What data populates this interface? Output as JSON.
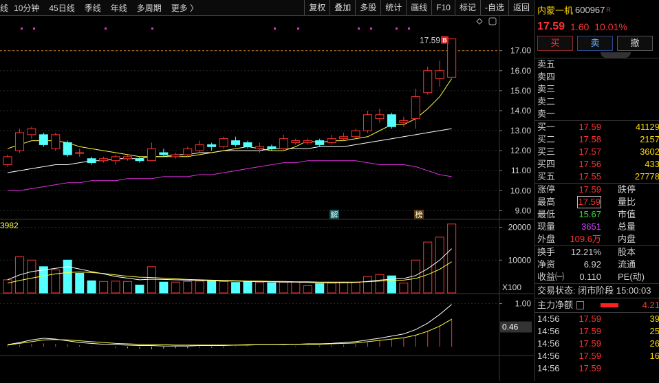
{
  "toolbar": {
    "left_items": [
      "线",
      "10分钟",
      "45日线",
      "季线",
      "年线",
      "多周期",
      "更多 〉"
    ],
    "right_items": [
      "复权",
      "叠加",
      "多股",
      "统计",
      "画线",
      "F10",
      "标记",
      "-自选",
      "返回"
    ]
  },
  "colors": {
    "up": "#ff3232",
    "down": "#54ffff",
    "ma_white": "#ffffff",
    "ma_yellow": "#ffff40",
    "ma_magenta": "#e030e0",
    "grid": "#2a2a2a",
    "bg": "#000000"
  },
  "chart_data": [
    {
      "type": "candlestick",
      "title": "",
      "y_ticks": [
        "17.00",
        "16.00",
        "15.00",
        "14.00",
        "13.00",
        "12.00",
        "11.00",
        "10.00",
        "9.00"
      ],
      "ylim": [
        8.6,
        18.4
      ],
      "ref_line": 17.0,
      "last_price_label": "17.59",
      "markers": [
        "解",
        "榜"
      ],
      "candles": [
        {
          "o": 11.3,
          "c": 11.7,
          "h": 11.8,
          "l": 11.2
        },
        {
          "o": 12.0,
          "c": 12.9,
          "h": 13.1,
          "l": 11.9
        },
        {
          "o": 12.8,
          "c": 13.1,
          "h": 13.2,
          "l": 12.6
        },
        {
          "o": 12.8,
          "c": 12.3,
          "h": 12.9,
          "l": 12.2
        },
        {
          "o": 12.1,
          "c": 12.8,
          "h": 12.9,
          "l": 12.0
        },
        {
          "o": 12.4,
          "c": 11.8,
          "h": 12.5,
          "l": 11.7
        },
        {
          "o": 11.9,
          "c": 11.9,
          "h": 12.1,
          "l": 11.7
        },
        {
          "o": 11.6,
          "c": 11.4,
          "h": 11.7,
          "l": 11.3
        },
        {
          "o": 11.5,
          "c": 11.6,
          "h": 11.7,
          "l": 11.4
        },
        {
          "o": 11.5,
          "c": 11.7,
          "h": 11.8,
          "l": 11.3
        },
        {
          "o": 11.6,
          "c": 11.7,
          "h": 11.8,
          "l": 11.5
        },
        {
          "o": 11.6,
          "c": 11.5,
          "h": 11.7,
          "l": 11.4
        },
        {
          "o": 11.5,
          "c": 12.1,
          "h": 12.4,
          "l": 11.5
        },
        {
          "o": 11.9,
          "c": 11.8,
          "h": 12.1,
          "l": 11.7
        },
        {
          "o": 11.7,
          "c": 11.8,
          "h": 11.9,
          "l": 11.6
        },
        {
          "o": 11.8,
          "c": 12.1,
          "h": 12.2,
          "l": 11.7
        },
        {
          "o": 12.0,
          "c": 12.3,
          "h": 12.5,
          "l": 11.9
        },
        {
          "o": 12.3,
          "c": 12.2,
          "h": 12.4,
          "l": 12.0
        },
        {
          "o": 12.2,
          "c": 12.6,
          "h": 12.7,
          "l": 12.1
        },
        {
          "o": 12.5,
          "c": 12.3,
          "h": 12.7,
          "l": 12.2
        },
        {
          "o": 12.4,
          "c": 12.2,
          "h": 12.5,
          "l": 12.1
        },
        {
          "o": 12.1,
          "c": 12.2,
          "h": 12.4,
          "l": 11.9
        },
        {
          "o": 12.2,
          "c": 12.1,
          "h": 12.3,
          "l": 12.0
        },
        {
          "o": 12.1,
          "c": 12.6,
          "h": 12.8,
          "l": 12.0
        },
        {
          "o": 12.4,
          "c": 12.5,
          "h": 12.6,
          "l": 12.3
        },
        {
          "o": 12.4,
          "c": 12.5,
          "h": 12.6,
          "l": 12.3
        },
        {
          "o": 12.5,
          "c": 12.3,
          "h": 12.6,
          "l": 12.2
        },
        {
          "o": 12.4,
          "c": 12.6,
          "h": 12.8,
          "l": 12.3
        },
        {
          "o": 12.6,
          "c": 12.7,
          "h": 12.9,
          "l": 12.5
        },
        {
          "o": 12.7,
          "c": 13.0,
          "h": 13.1,
          "l": 12.6
        },
        {
          "o": 13.0,
          "c": 13.8,
          "h": 14.0,
          "l": 12.9
        },
        {
          "o": 13.6,
          "c": 13.8,
          "h": 14.1,
          "l": 13.4
        },
        {
          "o": 13.8,
          "c": 13.2,
          "h": 13.9,
          "l": 13.1
        },
        {
          "o": 13.4,
          "c": 13.5,
          "h": 13.7,
          "l": 13.2
        },
        {
          "o": 13.6,
          "c": 14.7,
          "h": 15.1,
          "l": 13.1
        },
        {
          "o": 14.9,
          "c": 16.0,
          "h": 16.2,
          "l": 14.8
        },
        {
          "o": 15.6,
          "c": 16.0,
          "h": 16.5,
          "l": 15.2
        },
        {
          "o": 15.67,
          "c": 17.59,
          "h": 17.59,
          "l": 15.67
        }
      ],
      "ma_white": [
        10.9,
        11.0,
        11.1,
        11.2,
        11.3,
        11.3,
        11.4,
        11.5,
        11.5,
        11.6,
        11.6,
        11.6,
        11.7,
        11.7,
        11.8,
        11.8,
        11.9,
        11.9,
        12.0,
        12.0,
        12.0,
        12.0,
        12.1,
        12.1,
        12.1,
        12.1,
        12.2,
        12.2,
        12.2,
        12.3,
        12.4,
        12.5,
        12.6,
        12.7,
        12.8,
        12.9,
        13.0,
        13.1
      ],
      "ma_yellow": [
        12.1,
        12.3,
        12.5,
        12.5,
        12.5,
        12.4,
        12.2,
        12.1,
        12.0,
        11.9,
        11.8,
        11.7,
        11.7,
        11.7,
        11.7,
        11.7,
        11.8,
        11.9,
        12.0,
        12.1,
        12.2,
        12.1,
        12.0,
        12.0,
        12.2,
        12.5,
        12.4,
        12.5,
        12.5,
        12.6,
        12.7,
        13.0,
        13.3,
        13.3,
        13.6,
        14.1,
        14.7,
        15.6
      ],
      "ma_magenta": [
        10.0,
        10.0,
        10.1,
        10.2,
        10.3,
        10.4,
        10.4,
        10.5,
        10.5,
        10.5,
        10.6,
        10.6,
        10.6,
        10.7,
        10.7,
        10.7,
        10.8,
        10.8,
        10.9,
        11.0,
        11.1,
        11.2,
        11.3,
        11.4,
        11.4,
        11.5,
        11.5,
        11.5,
        11.5,
        11.5,
        11.4,
        11.3,
        11.3,
        11.3,
        11.2,
        11.0,
        10.8,
        10.7
      ]
    },
    {
      "type": "bar",
      "label": "3982",
      "y_ticks": [
        "20000",
        "10000"
      ],
      "unit": "X100",
      "ylim": [
        0,
        22000
      ],
      "values": [
        4000,
        11000,
        10000,
        8000,
        7000,
        10000,
        6000,
        3700,
        3500,
        3600,
        3500,
        2400,
        8000,
        3300,
        3300,
        3500,
        3600,
        3700,
        3500,
        3200,
        3400,
        3300,
        3100,
        3300,
        3300,
        2200,
        2800,
        3000,
        3200,
        3200,
        5000,
        5600,
        5200,
        3000,
        10000,
        15500,
        17000,
        21000
      ],
      "up_flags": [
        1,
        1,
        1,
        0,
        1,
        0,
        0,
        0,
        1,
        1,
        1,
        0,
        1,
        0,
        1,
        1,
        1,
        0,
        1,
        0,
        0,
        1,
        0,
        1,
        1,
        1,
        0,
        1,
        1,
        1,
        1,
        1,
        0,
        1,
        1,
        1,
        1,
        1
      ],
      "ma1": [
        4000,
        5500,
        6500,
        7000,
        7500,
        8000,
        7300,
        6500,
        5800,
        5000,
        4500,
        4000,
        4200,
        4100,
        4000,
        3900,
        3800,
        3700,
        3600,
        3600,
        3500,
        3400,
        3400,
        3300,
        3300,
        3200,
        3100,
        3100,
        3100,
        3200,
        3500,
        3900,
        4200,
        4400,
        5300,
        7400,
        10000,
        13500
      ],
      "ma2": [
        3000,
        3800,
        4500,
        5200,
        5800,
        6200,
        6400,
        6200,
        5900,
        5500,
        5100,
        4800,
        4700,
        4500,
        4300,
        4100,
        4000,
        3900,
        3800,
        3700,
        3600,
        3600,
        3500,
        3500,
        3400,
        3400,
        3300,
        3300,
        3300,
        3300,
        3400,
        3600,
        3800,
        3900,
        4400,
        5600,
        7200,
        9500
      ]
    },
    {
      "type": "bar",
      "y_ticks": [
        "1.00"
      ],
      "cursor_label": "0.46",
      "ylim": [
        -0.2,
        1.2
      ],
      "values": [
        0.03,
        0.05,
        0.07,
        0.08,
        0.07,
        0.06,
        0.04,
        0.02,
        0.0,
        -0.02,
        -0.03,
        -0.04,
        -0.05,
        -0.04,
        -0.03,
        -0.03,
        -0.02,
        -0.02,
        -0.02,
        -0.01,
        -0.01,
        0.0,
        0.0,
        0.01,
        0.02,
        0.02,
        0.03,
        0.04,
        0.05,
        0.06,
        0.1,
        0.14,
        0.18,
        0.2,
        0.28,
        0.38,
        0.5,
        0.65
      ],
      "line1": [
        0.05,
        0.1,
        0.16,
        0.2,
        0.18,
        0.14,
        0.1,
        0.08,
        0.06,
        0.05,
        0.04,
        0.03,
        0.03,
        0.02,
        0.02,
        0.02,
        0.03,
        0.03,
        0.03,
        0.04,
        0.04,
        0.05,
        0.05,
        0.06,
        0.06,
        0.07,
        0.07,
        0.08,
        0.1,
        0.12,
        0.16,
        0.2,
        0.25,
        0.3,
        0.4,
        0.55,
        0.75,
        0.98
      ],
      "line2": [
        0.04,
        0.08,
        0.12,
        0.16,
        0.17,
        0.16,
        0.14,
        0.12,
        0.1,
        0.08,
        0.07,
        0.06,
        0.05,
        0.05,
        0.04,
        0.04,
        0.04,
        0.04,
        0.04,
        0.04,
        0.05,
        0.05,
        0.05,
        0.05,
        0.06,
        0.06,
        0.06,
        0.07,
        0.08,
        0.09,
        0.12,
        0.15,
        0.18,
        0.21,
        0.27,
        0.36,
        0.48,
        0.64
      ]
    }
  ],
  "stock": {
    "name": "内蒙一机",
    "code": "600967",
    "badge": "R",
    "price": "17.59",
    "change": "1.60",
    "pct": "10.01%",
    "btn_buy": "买",
    "btn_sell": "卖",
    "btn_cancel": "撤"
  },
  "asks": [
    {
      "label": "卖五"
    },
    {
      "label": "卖四"
    },
    {
      "label": "卖三"
    },
    {
      "label": "卖二"
    },
    {
      "label": "卖一"
    }
  ],
  "bids": [
    {
      "label": "买一",
      "price": "17.59",
      "vol": "41129"
    },
    {
      "label": "买二",
      "price": "17.58",
      "vol": "2157"
    },
    {
      "label": "买三",
      "price": "17.57",
      "vol": "3602"
    },
    {
      "label": "买四",
      "price": "17.56",
      "vol": "433"
    },
    {
      "label": "买五",
      "price": "17.55",
      "vol": "27778"
    }
  ],
  "quote": [
    {
      "k1": "涨停",
      "v1": "17.59",
      "k2": "跌停"
    },
    {
      "k1": "最高",
      "v1": "17.59",
      "k2": "量比"
    },
    {
      "k1": "最低",
      "v1": "15.67",
      "k2": "市值"
    },
    {
      "k1": "现量",
      "v1": "3651",
      "k2": "总量"
    },
    {
      "k1": "外盘",
      "v1": "109.6万",
      "k2": "内盘"
    }
  ],
  "stats": [
    {
      "k1": "换手",
      "v1": "12.21%",
      "k2": "股本"
    },
    {
      "k1": "净资",
      "v1": "6.92",
      "k2": "流通"
    },
    {
      "k1": "收益㈠",
      "v1": "0.110",
      "k2": "PE(动)"
    }
  ],
  "trade_status": "交易状态: 闭市阶段 15:00:03",
  "main_flow": {
    "label": "主力净额",
    "value": "4.21"
  },
  "ticks": [
    {
      "time": "14:56",
      "price": "17.59",
      "vol": "39"
    },
    {
      "time": "14:56",
      "price": "17.59",
      "vol": "25"
    },
    {
      "time": "14:56",
      "price": "17.59",
      "vol": "26"
    },
    {
      "time": "14:56",
      "price": "17.59",
      "vol": "16"
    },
    {
      "time": "14:56",
      "price": "17.59",
      "vol": ""
    }
  ]
}
